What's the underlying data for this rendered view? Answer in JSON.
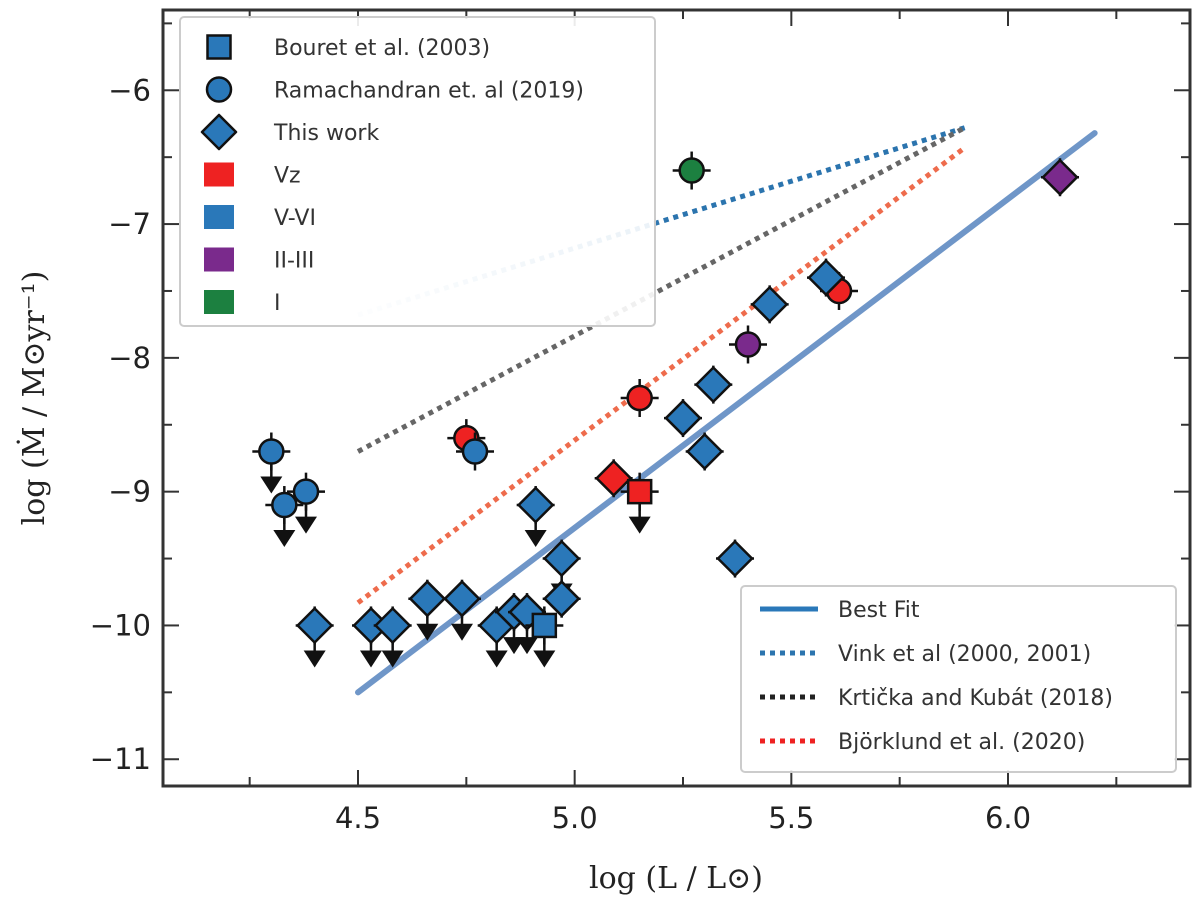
{
  "chart_data": {
    "type": "scatter",
    "xlabel": "log (L / L⊙)",
    "ylabel": "log (Ṁ / M⊙yr⁻¹)",
    "xlim": [
      4.05,
      6.42
    ],
    "ylim": [
      -11.2,
      -5.4
    ],
    "x_ticks": [
      {
        "value": 4.5,
        "label": "4.5"
      },
      {
        "value": 5.0,
        "label": "5.0"
      },
      {
        "value": 5.5,
        "label": "5.5"
      },
      {
        "value": 6.0,
        "label": "6.0"
      }
    ],
    "x_minor_ticks": [
      4.25,
      4.75,
      5.25,
      5.75,
      6.25
    ],
    "y_ticks": [
      {
        "value": -6,
        "label": "−6"
      },
      {
        "value": -7,
        "label": "−7"
      },
      {
        "value": -8,
        "label": "−8"
      },
      {
        "value": -9,
        "label": "−9"
      },
      {
        "value": -10,
        "label": "−10"
      },
      {
        "value": -11,
        "label": "−11"
      }
    ],
    "y_minor_ticks": [
      -5.5,
      -6.5,
      -7.5,
      -8.5,
      -9.5,
      -10.5
    ],
    "colors": {
      "Vz": "#ee2222",
      "V-VI": "#2a78b9",
      "II-III": "#7a2a8c",
      "I": "#1c8040",
      "best_fit": "#6f96c8",
      "vink": "#2b74ae",
      "krticka": "#666666",
      "bjorklund": "#ee6b4c"
    },
    "legend_top": {
      "placement": "top-left",
      "entries": [
        {
          "label": "Bouret et al. (2003)",
          "marker": "square",
          "color": "#2a78b9"
        },
        {
          "label": "Ramachandran et. al (2019)",
          "marker": "circle",
          "color": "#2a78b9"
        },
        {
          "label": "This work",
          "marker": "diamond",
          "color": "#2a78b9"
        },
        {
          "label": "Vz",
          "marker": "patch",
          "color": "#ee2222"
        },
        {
          "label": "V-VI",
          "marker": "patch",
          "color": "#2a78b9"
        },
        {
          "label": "II-III",
          "marker": "patch",
          "color": "#7a2a8c"
        },
        {
          "label": "I",
          "marker": "patch",
          "color": "#1c8040"
        }
      ]
    },
    "legend_bottom": {
      "placement": "bottom-right",
      "entries": [
        {
          "label": "Best Fit",
          "style": "solid",
          "color": "#2a78b9"
        },
        {
          "label": "Vink et al (2000, 2001)",
          "style": "dotted",
          "color": "#2b74ae"
        },
        {
          "label": "Krtička and Kubát (2018)",
          "style": "dotted",
          "color": "#222222"
        },
        {
          "label": "Björklund et al. (2020)",
          "style": "dotted",
          "color": "#ee2222"
        }
      ]
    },
    "lines": [
      {
        "name": "Vink et al (2000, 2001)",
        "style": "dotted",
        "color": "#2b74ae",
        "gradient_fade": true,
        "x": [
          4.5,
          5.9
        ],
        "y": [
          -7.68,
          -6.28
        ]
      },
      {
        "name": "Krticka and Kubat (2018)",
        "style": "dotted",
        "color": "#666666",
        "x": [
          4.5,
          5.9
        ],
        "y": [
          -8.7,
          -6.28
        ]
      },
      {
        "name": "Bjorklund et al. (2020)",
        "style": "dotted",
        "color": "#ee6b4c",
        "x": [
          4.5,
          5.9
        ],
        "y": [
          -9.83,
          -6.43
        ]
      },
      {
        "name": "Best Fit",
        "style": "solid",
        "color": "#6f96c8",
        "x": [
          4.5,
          6.2
        ],
        "y": [
          -10.5,
          -6.32
        ]
      }
    ],
    "points": [
      {
        "x": 4.3,
        "y": -8.7,
        "marker": "circle",
        "cls": "V-VI",
        "upper": true
      },
      {
        "x": 4.33,
        "y": -9.1,
        "marker": "circle",
        "cls": "V-VI",
        "upper": true
      },
      {
        "x": 4.38,
        "y": -9.0,
        "marker": "circle",
        "cls": "V-VI",
        "upper": true
      },
      {
        "x": 4.4,
        "y": -10.0,
        "marker": "diamond",
        "cls": "V-VI",
        "upper": true
      },
      {
        "x": 4.53,
        "y": -10.0,
        "marker": "diamond",
        "cls": "V-VI",
        "upper": true
      },
      {
        "x": 4.58,
        "y": -10.0,
        "marker": "diamond",
        "cls": "V-VI",
        "upper": true
      },
      {
        "x": 4.66,
        "y": -9.8,
        "marker": "diamond",
        "cls": "V-VI",
        "upper": true
      },
      {
        "x": 4.74,
        "y": -9.8,
        "marker": "diamond",
        "cls": "V-VI",
        "upper": true
      },
      {
        "x": 4.75,
        "y": -8.6,
        "marker": "circle",
        "cls": "Vz",
        "upper": false
      },
      {
        "x": 4.77,
        "y": -8.7,
        "marker": "circle",
        "cls": "V-VI",
        "upper": false
      },
      {
        "x": 4.82,
        "y": -10.0,
        "marker": "diamond",
        "cls": "V-VI",
        "upper": true
      },
      {
        "x": 4.86,
        "y": -9.9,
        "marker": "diamond",
        "cls": "V-VI",
        "upper": true
      },
      {
        "x": 4.89,
        "y": -9.9,
        "marker": "diamond",
        "cls": "V-VI",
        "upper": true
      },
      {
        "x": 4.91,
        "y": -9.1,
        "marker": "diamond",
        "cls": "V-VI",
        "upper": true
      },
      {
        "x": 4.93,
        "y": -10.0,
        "marker": "square",
        "cls": "V-VI",
        "upper": true
      },
      {
        "x": 4.97,
        "y": -9.5,
        "marker": "diamond",
        "cls": "V-VI",
        "upper": true
      },
      {
        "x": 4.97,
        "y": -9.8,
        "marker": "diamond",
        "cls": "V-VI",
        "upper": false
      },
      {
        "x": 5.09,
        "y": -8.9,
        "marker": "diamond",
        "cls": "Vz",
        "upper": false
      },
      {
        "x": 5.15,
        "y": -9.0,
        "marker": "square",
        "cls": "Vz",
        "upper": true
      },
      {
        "x": 5.15,
        "y": -8.3,
        "marker": "circle",
        "cls": "Vz",
        "upper": false
      },
      {
        "x": 5.25,
        "y": -8.45,
        "marker": "diamond",
        "cls": "V-VI",
        "upper": false
      },
      {
        "x": 5.27,
        "y": -6.6,
        "marker": "circle",
        "cls": "I",
        "upper": false
      },
      {
        "x": 5.3,
        "y": -8.7,
        "marker": "diamond",
        "cls": "V-VI",
        "upper": false
      },
      {
        "x": 5.32,
        "y": -8.2,
        "marker": "diamond",
        "cls": "V-VI",
        "upper": false
      },
      {
        "x": 5.37,
        "y": -9.5,
        "marker": "diamond",
        "cls": "V-VI",
        "upper": false
      },
      {
        "x": 5.4,
        "y": -7.9,
        "marker": "circle",
        "cls": "II-III",
        "upper": false
      },
      {
        "x": 5.45,
        "y": -7.6,
        "marker": "diamond",
        "cls": "V-VI",
        "upper": false
      },
      {
        "x": 5.61,
        "y": -7.5,
        "marker": "circle",
        "cls": "Vz",
        "upper": false
      },
      {
        "x": 5.58,
        "y": -7.4,
        "marker": "diamond",
        "cls": "V-VI",
        "upper": false
      },
      {
        "x": 6.12,
        "y": -6.65,
        "marker": "diamond",
        "cls": "II-III",
        "upper": false
      }
    ]
  }
}
